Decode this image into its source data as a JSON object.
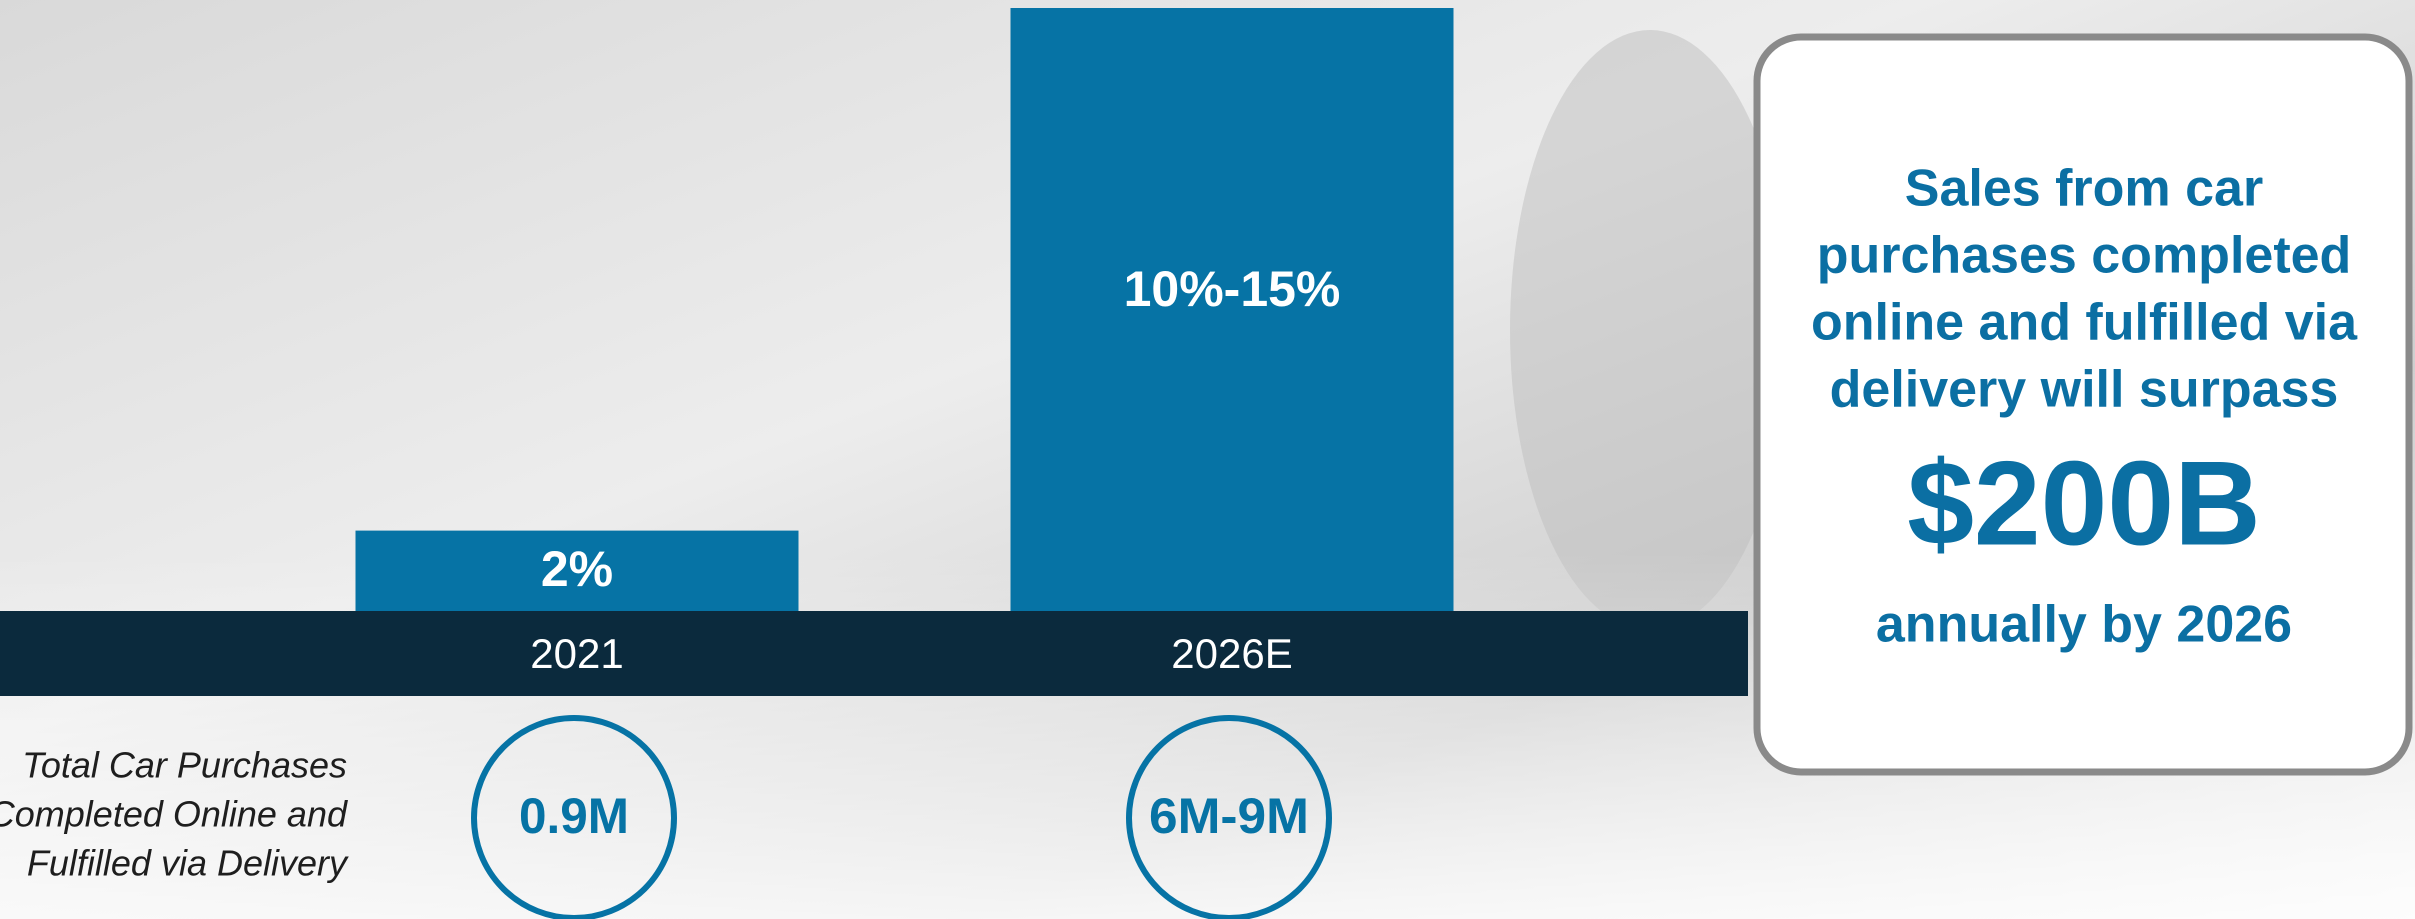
{
  "chart_data": {
    "type": "bar",
    "categories": [
      "2021",
      "2026E"
    ],
    "values": [
      2,
      15
    ],
    "value_labels": [
      "2%",
      "10%-15%"
    ],
    "color": "#0673a5",
    "side_label": [
      "Total Car Purchases",
      "Completed Online and",
      "Fulfilled via Delivery"
    ],
    "purchases": [
      "0.9M",
      "6M-9M"
    ]
  },
  "callout": {
    "lines": [
      "Sales from car",
      "purchases completed",
      "online and fulfilled via",
      "delivery will surpass"
    ],
    "highlight": "$200B",
    "footer": "annually by 2026"
  }
}
